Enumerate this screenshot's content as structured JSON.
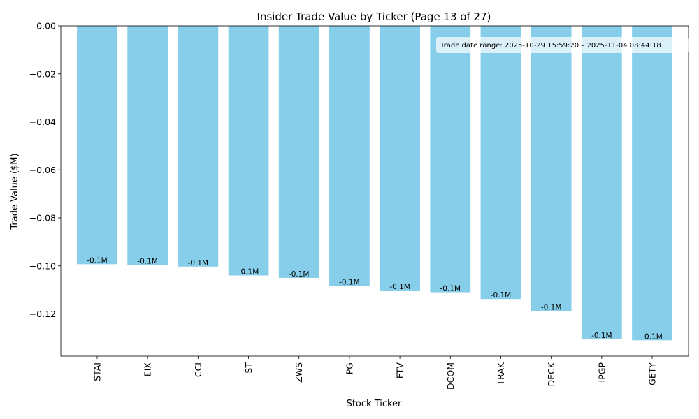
{
  "chart_data": {
    "type": "bar",
    "title": "Insider Trade Value by Ticker (Page 13 of 27)",
    "xlabel": "Stock Ticker",
    "ylabel": "Trade Value ($M)",
    "categories": [
      "STAI",
      "EIX",
      "CCI",
      "ST",
      "ZWS",
      "PG",
      "FTV",
      "DCOM",
      "TRAK",
      "DECK",
      "IPGP",
      "GETY"
    ],
    "values": [
      -0.0993,
      -0.0996,
      -0.1003,
      -0.104,
      -0.105,
      -0.1083,
      -0.1103,
      -0.111,
      -0.1138,
      -0.1188,
      -0.1306,
      -0.131
    ],
    "data_labels": [
      "-0.1M",
      "-0.1M",
      "-0.1M",
      "-0.1M",
      "-0.1M",
      "-0.1M",
      "-0.1M",
      "-0.1M",
      "-0.1M",
      "-0.1M",
      "-0.1M",
      "-0.1M"
    ],
    "yticks": [
      0.0,
      -0.02,
      -0.04,
      -0.06,
      -0.08,
      -0.1,
      -0.12
    ],
    "ytick_labels": [
      "0.00",
      "−0.02",
      "−0.04",
      "−0.06",
      "−0.08",
      "−0.10",
      "−0.12"
    ],
    "ylim": [
      -0.1376,
      0.0
    ],
    "annotation": "Trade date range: 2025-10-29 15:59:20 – 2025-11-04 08:44:18",
    "bar_color": "#87CEEB",
    "grid": false,
    "legend": "none"
  }
}
